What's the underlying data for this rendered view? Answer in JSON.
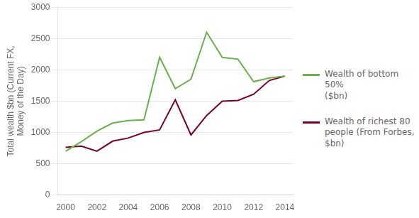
{
  "chart_data": {
    "type": "line",
    "x": [
      2000,
      2001,
      2002,
      2003,
      2004,
      2005,
      2006,
      2007,
      2008,
      2009,
      2010,
      2011,
      2012,
      2013,
      2014
    ],
    "series": [
      {
        "name": "Wealth of bottom 50%\n($bn)",
        "color": "#6ab04c",
        "values": [
          700,
          850,
          1020,
          1150,
          1190,
          1200,
          2200,
          1700,
          1850,
          2600,
          2200,
          2170,
          1810,
          1870,
          1900
        ]
      },
      {
        "name": "Wealth of richest 80\npeople (From Forbes,\n$bn)",
        "color": "#7b0028",
        "values": [
          760,
          780,
          700,
          860,
          910,
          1000,
          1040,
          1520,
          960,
          1270,
          1500,
          1510,
          1610,
          1830,
          1900
        ]
      }
    ],
    "ylabel": "Total wealth $bn (Current FX,\nMoney of the Day)",
    "xlim": [
      1999.5,
      2014.5
    ],
    "xticks": [
      2000,
      2002,
      2004,
      2006,
      2008,
      2010,
      2012,
      2014
    ],
    "ylim": [
      0,
      3000
    ],
    "yticks": [
      0,
      500,
      1000,
      1500,
      2000,
      2500,
      3000
    ],
    "grid": "y",
    "legend": "right"
  }
}
